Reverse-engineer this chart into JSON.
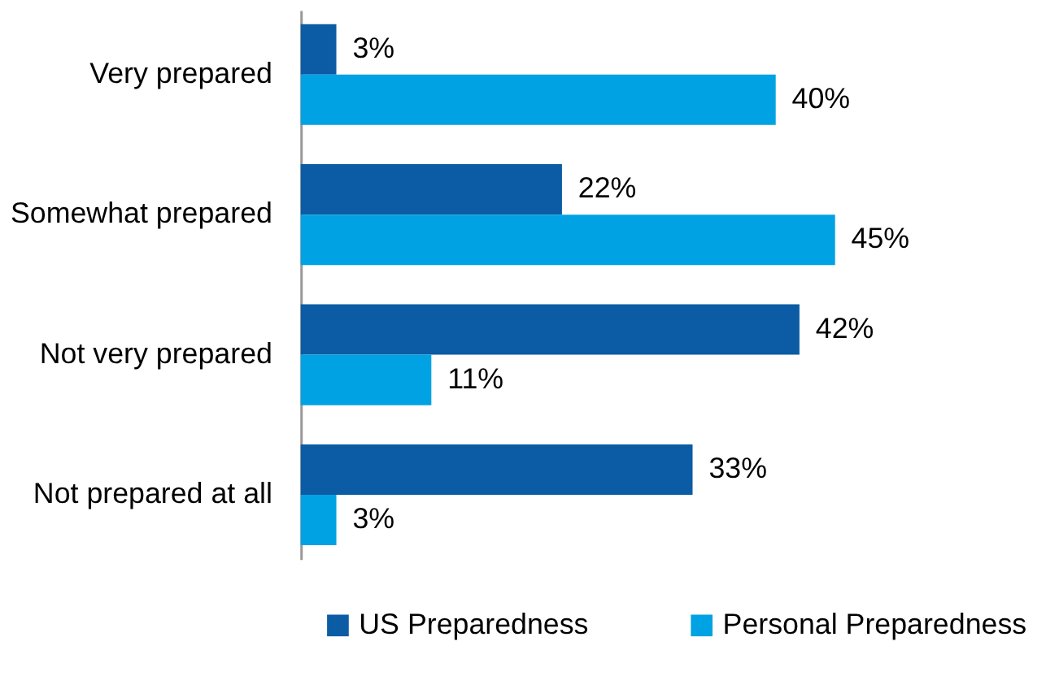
{
  "chart_data": {
    "type": "bar",
    "orientation": "horizontal",
    "categories": [
      "Very prepared",
      "Somewhat prepared",
      "Not very prepared",
      "Not prepared at all"
    ],
    "series": [
      {
        "name": "US Preparedness",
        "color": "#0b5ca4",
        "values": [
          3,
          22,
          42,
          33
        ],
        "value_labels": [
          "3%",
          "22%",
          "42%",
          "33%"
        ]
      },
      {
        "name": "Personal Preparedness",
        "color": "#00a2e3",
        "values": [
          40,
          45,
          11,
          3
        ],
        "value_labels": [
          "40%",
          "45%",
          "11%",
          "3%"
        ]
      }
    ],
    "legend": "bottom",
    "grid": false,
    "tick_labels": "y"
  }
}
